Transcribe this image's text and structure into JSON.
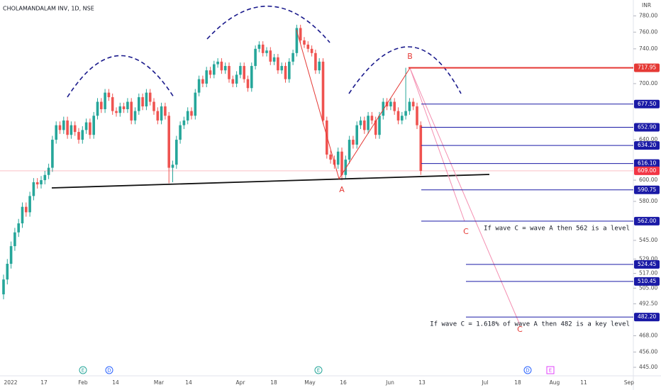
{
  "chart_data": {
    "type": "candlestick",
    "title": "CHOLAMANDALAM INV, 1D, NSE",
    "currency": "INR",
    "log_scale": true,
    "up_color": "#26a69a",
    "down_color": "#ef5350",
    "ylim": [
      439,
      800
    ],
    "yticks": [
      {
        "value": 780,
        "label": "780.00"
      },
      {
        "value": 760,
        "label": "760.00"
      },
      {
        "value": 740,
        "label": "740.00"
      },
      {
        "value": 700,
        "label": "700.00"
      },
      {
        "value": 640,
        "label": "640.00"
      },
      {
        "value": 600,
        "label": "600.00"
      },
      {
        "value": 580,
        "label": "580.00"
      },
      {
        "value": 545,
        "label": "545.00"
      },
      {
        "value": 529,
        "label": "529.00"
      },
      {
        "value": 517,
        "label": "517.00"
      },
      {
        "value": 505,
        "label": "505.00"
      },
      {
        "value": 492.5,
        "label": "492.50"
      },
      {
        "value": 468,
        "label": "468.00"
      },
      {
        "value": 456,
        "label": "456.00"
      },
      {
        "value": 445,
        "label": "445.00"
      }
    ],
    "xticks": [
      "2022",
      "17",
      "Feb",
      "14",
      "Mar",
      "14",
      "Apr",
      "18",
      "May",
      "16",
      "Jun",
      "13",
      "Jul",
      "18",
      "Aug",
      "11",
      "Sep"
    ],
    "levels": [
      {
        "value": 717.95,
        "label": "717.95",
        "color": "#e53935"
      },
      {
        "value": 677.5,
        "label": "677.50",
        "color": "#1a1aa6"
      },
      {
        "value": 652.9,
        "label": "652.90",
        "color": "#1a1aa6"
      },
      {
        "value": 634.2,
        "label": "634.20",
        "color": "#1a1aa6"
      },
      {
        "value": 616.1,
        "label": "616.10",
        "color": "#1a1aa6"
      },
      {
        "value": 609,
        "label": "609.00",
        "color": "#f23645"
      },
      {
        "value": 590.75,
        "label": "590.75",
        "color": "#1a1aa6"
      },
      {
        "value": 562,
        "label": "562.00",
        "color": "#1a1aa6"
      },
      {
        "value": 524.45,
        "label": "524.45",
        "color": "#1a1aa6"
      },
      {
        "value": 510.45,
        "label": "510.45",
        "color": "#1a1aa6"
      },
      {
        "value": 482.2,
        "label": "482.20",
        "color": "#1a1aa6"
      }
    ],
    "annotations": [
      "A",
      "B",
      "C",
      "C",
      "If wave C = wave A then 562 is a level",
      "If wave C = 1.618% of wave A then 482 is a key level"
    ],
    "events": [
      "E",
      "D",
      "E",
      "D",
      "E"
    ],
    "candles": [
      [
        500,
        516,
        496,
        512
      ],
      [
        512,
        529,
        508,
        525
      ],
      [
        525,
        544,
        521,
        540
      ],
      [
        540,
        556,
        536,
        552
      ],
      [
        552,
        564,
        548,
        560
      ],
      [
        560,
        579,
        556,
        575
      ],
      [
        575,
        579,
        566,
        570
      ],
      [
        570,
        589,
        566,
        585
      ],
      [
        585,
        602,
        581,
        598
      ],
      [
        598,
        602,
        592,
        596
      ],
      [
        596,
        604,
        592,
        600
      ],
      [
        600,
        609,
        596,
        605
      ],
      [
        605,
        616,
        601,
        612
      ],
      [
        612,
        644,
        608,
        640
      ],
      [
        640,
        659,
        636,
        655
      ],
      [
        655,
        659,
        646,
        650
      ],
      [
        650,
        664,
        646,
        660
      ],
      [
        660,
        664,
        641,
        645
      ],
      [
        645,
        659,
        641,
        655
      ],
      [
        655,
        659,
        644,
        648
      ],
      [
        648,
        652,
        636,
        640
      ],
      [
        640,
        654,
        636,
        650
      ],
      [
        650,
        662,
        646,
        658
      ],
      [
        658,
        662,
        641,
        645
      ],
      [
        645,
        669,
        641,
        665
      ],
      [
        665,
        684,
        661,
        680
      ],
      [
        680,
        684,
        668,
        672
      ],
      [
        672,
        694,
        668,
        690
      ],
      [
        690,
        694,
        681,
        685
      ],
      [
        685,
        689,
        666,
        670
      ],
      [
        670,
        674,
        664,
        668
      ],
      [
        668,
        679,
        664,
        675
      ],
      [
        675,
        679,
        668,
        672
      ],
      [
        672,
        684,
        668,
        680
      ],
      [
        680,
        684,
        656,
        660
      ],
      [
        660,
        674,
        656,
        670
      ],
      [
        670,
        689,
        666,
        685
      ],
      [
        685,
        689,
        671,
        675
      ],
      [
        675,
        694,
        671,
        690
      ],
      [
        690,
        694,
        676,
        680
      ],
      [
        680,
        684,
        666,
        670
      ],
      [
        670,
        674,
        656,
        660
      ],
      [
        660,
        679,
        656,
        675
      ],
      [
        675,
        679,
        661,
        665
      ],
      [
        665,
        669,
        597,
        612
      ],
      [
        612,
        619,
        598,
        615
      ],
      [
        615,
        644,
        611,
        640
      ],
      [
        640,
        659,
        636,
        655
      ],
      [
        655,
        664,
        651,
        660
      ],
      [
        660,
        674,
        656,
        670
      ],
      [
        670,
        674,
        661,
        665
      ],
      [
        665,
        694,
        661,
        690
      ],
      [
        690,
        709,
        686,
        705
      ],
      [
        705,
        709,
        696,
        700
      ],
      [
        700,
        719,
        696,
        715
      ],
      [
        715,
        719,
        706,
        710
      ],
      [
        710,
        726,
        706,
        722
      ],
      [
        722,
        729,
        718,
        725
      ],
      [
        725,
        729,
        711,
        715
      ],
      [
        715,
        724,
        711,
        720
      ],
      [
        720,
        724,
        701,
        705
      ],
      [
        705,
        709,
        696,
        700
      ],
      [
        700,
        714,
        696,
        710
      ],
      [
        710,
        724,
        706,
        720
      ],
      [
        720,
        724,
        701,
        705
      ],
      [
        705,
        709,
        691,
        695
      ],
      [
        695,
        724,
        691,
        720
      ],
      [
        720,
        744,
        716,
        740
      ],
      [
        740,
        749,
        736,
        745
      ],
      [
        745,
        749,
        731,
        735
      ],
      [
        735,
        742,
        731,
        738
      ],
      [
        738,
        742,
        721,
        725
      ],
      [
        725,
        734,
        721,
        730
      ],
      [
        730,
        734,
        711,
        715
      ],
      [
        715,
        724,
        711,
        720
      ],
      [
        720,
        724,
        701,
        705
      ],
      [
        705,
        729,
        701,
        725
      ],
      [
        725,
        739,
        721,
        735
      ],
      [
        735,
        769,
        731,
        765
      ],
      [
        765,
        769,
        746,
        750
      ],
      [
        750,
        754,
        741,
        745
      ],
      [
        745,
        749,
        736,
        740
      ],
      [
        740,
        744,
        731,
        735
      ],
      [
        735,
        739,
        711,
        715
      ],
      [
        715,
        729,
        711,
        725
      ],
      [
        725,
        729,
        656,
        660
      ],
      [
        660,
        664,
        621,
        625
      ],
      [
        625,
        629,
        616,
        620
      ],
      [
        620,
        624,
        611,
        615
      ],
      [
        615,
        632,
        611,
        628
      ],
      [
        628,
        632,
        600,
        605
      ],
      [
        605,
        624,
        601,
        620
      ],
      [
        620,
        644,
        616,
        640
      ],
      [
        640,
        644,
        631,
        635
      ],
      [
        635,
        659,
        631,
        655
      ],
      [
        655,
        664,
        651,
        660
      ],
      [
        660,
        664,
        646,
        650
      ],
      [
        650,
        669,
        646,
        665
      ],
      [
        665,
        669,
        656,
        660
      ],
      [
        660,
        664,
        641,
        645
      ],
      [
        645,
        669,
        641,
        665
      ],
      [
        665,
        684,
        661,
        680
      ],
      [
        680,
        684,
        671,
        675
      ],
      [
        675,
        684,
        671,
        680
      ],
      [
        680,
        684,
        666,
        670
      ],
      [
        670,
        674,
        656,
        660
      ],
      [
        660,
        669,
        656,
        665
      ],
      [
        665,
        717.95,
        661,
        670
      ],
      [
        670,
        684,
        666,
        680
      ],
      [
        680,
        684,
        671,
        675
      ],
      [
        675,
        679,
        651,
        655
      ],
      [
        655,
        659,
        605,
        609
      ]
    ]
  }
}
